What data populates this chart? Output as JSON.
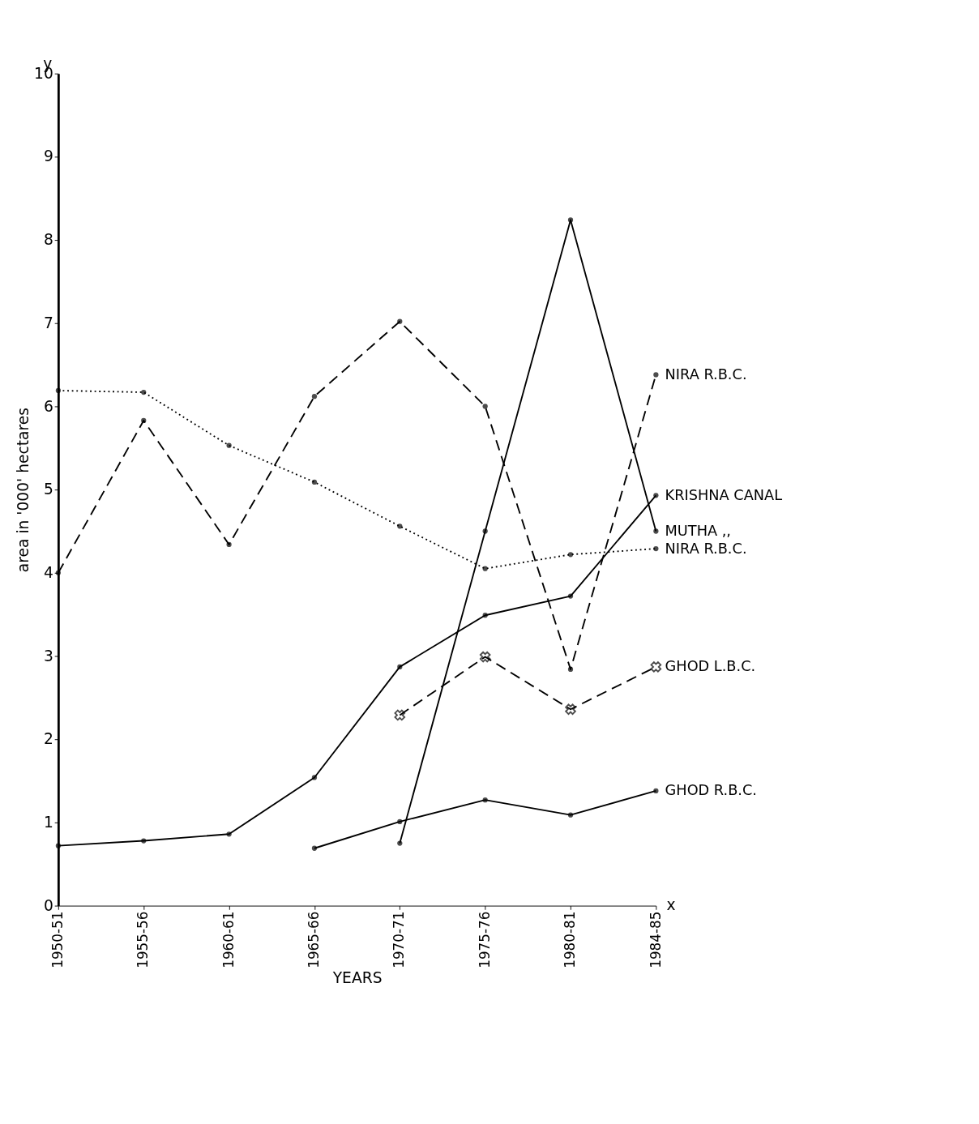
{
  "chart_data": {
    "type": "line",
    "xlabel": "YEARS",
    "ylabel": "area in '000' hectares",
    "categories": [
      "1950-51",
      "1955-56",
      "1960-61",
      "1965-66",
      "1970-71",
      "1975-76",
      "1980-81",
      "1984-85"
    ],
    "ylim": [
      0,
      10
    ],
    "yticks": [
      0,
      1,
      2,
      3,
      4,
      5,
      6,
      7,
      8,
      9,
      10
    ],
    "annotations": [
      "y",
      "x"
    ],
    "series": [
      {
        "name": "NIRA R.B.C.",
        "color": "#000000",
        "line_style": "dashed",
        "marker": "circle",
        "values": [
          4.0,
          5.83,
          4.34,
          6.12,
          7.02,
          6.0,
          2.84,
          6.38
        ]
      },
      {
        "name": "NIRA R.B.C.",
        "color": "#000000",
        "line_style": "dotted",
        "marker": "circle",
        "values": [
          6.19,
          6.17,
          5.53,
          5.09,
          4.56,
          4.05,
          4.22,
          4.29
        ]
      },
      {
        "name": "KRISHNA CANAL",
        "color": "#000000",
        "line_style": "solid",
        "marker": "circle",
        "values": [
          0.72,
          0.78,
          0.86,
          1.54,
          2.87,
          3.49,
          3.72,
          4.93
        ]
      },
      {
        "name": "MUTHA ,,",
        "color": "#000000",
        "line_style": "solid",
        "marker": "circle",
        "values": [
          null,
          null,
          null,
          null,
          0.75,
          4.5,
          8.24,
          4.5
        ]
      },
      {
        "name": "GHOD L.B.C.",
        "color": "#000000",
        "line_style": "dashed",
        "marker": "cross",
        "values": [
          null,
          null,
          null,
          null,
          2.29,
          2.99,
          2.36,
          2.87
        ]
      },
      {
        "name": "GHOD R.B.C.",
        "color": "#000000",
        "line_style": "solid",
        "marker": "circle",
        "values": [
          null,
          null,
          null,
          0.69,
          1.01,
          1.27,
          1.09,
          1.38
        ]
      }
    ]
  }
}
